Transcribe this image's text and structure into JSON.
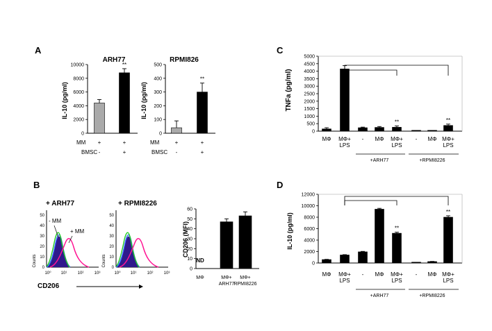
{
  "panels": {
    "A": "A",
    "B": "B",
    "C": "C",
    "D": "D"
  },
  "colors": {
    "black_bar": "#000000",
    "gray_bar": "#aaaaaa",
    "axis": "#000000",
    "histo_purple": "#2e1a8c",
    "histo_blue": "#3366ff",
    "histo_green": "#22cc22",
    "histo_magenta": "#ff1493",
    "label_green": "#006400"
  },
  "panel_a": {
    "ylabel": "IL-10 (pg/ml)",
    "row_labels": [
      "MM",
      "BMSC"
    ],
    "row_values": [
      [
        "+",
        "+"
      ],
      [
        "-",
        "+"
      ]
    ],
    "sig": "**"
  },
  "panel_b": {
    "titles": [
      "+ ARH77",
      "+ RPMI8226"
    ],
    "counts_label": "Counts",
    "annot_minus_mm": "- MM",
    "annot_plus_mm": "+ MM",
    "xlabel": "CD206",
    "decades": [
      "10⁰",
      "10¹",
      "10²",
      "10³"
    ],
    "nd": "ND",
    "bar_categories": [
      "MΦ",
      "MΦ+\nARH77",
      "MΦ+\nRPMI8226"
    ]
  },
  "panel_c": {
    "row1": [
      "MΦ",
      "MΦ+\nLPS",
      "-",
      "MΦ",
      "MΦ+\nLPS",
      "-",
      "MΦ",
      "MΦ+\nLPS"
    ],
    "groups": [
      "+ARH77",
      "+RPMI8226"
    ]
  },
  "panel_d": {
    "row1": [
      "MΦ",
      "MΦ+\nLPS",
      "-",
      "MΦ",
      "MΦ+\nLPS",
      "-",
      "MΦ",
      "MΦ+\nLPS"
    ],
    "groups": [
      "+ARH77",
      "+RPMI8226"
    ]
  },
  "chart_data": [
    {
      "id": "a1",
      "type": "bar",
      "title": "ARH77",
      "categories": [
        "MM+ BMSC-",
        "MM+ BMSC+"
      ],
      "values": [
        4400,
        8800
      ],
      "errors": [
        500,
        600
      ],
      "colors": [
        "gray",
        "black"
      ],
      "sig": [
        "",
        "**"
      ],
      "ylabel": "IL-10 (pg/ml)",
      "ylim": [
        0,
        10000
      ],
      "yticks": [
        0,
        2000,
        4000,
        6000,
        8000,
        10000
      ]
    },
    {
      "id": "a2",
      "type": "bar",
      "title": "RPMI826",
      "categories": [
        "MM+ BMSC-",
        "MM+ BMSC+"
      ],
      "values": [
        40,
        300
      ],
      "errors": [
        50,
        65
      ],
      "colors": [
        "gray",
        "black"
      ],
      "sig": [
        "",
        "**"
      ],
      "ylabel": "IL-10 (pg/ml)",
      "ylim": [
        0,
        500
      ],
      "yticks": [
        0,
        100,
        200,
        300,
        400,
        500
      ]
    },
    {
      "id": "b",
      "type": "bar",
      "title": "",
      "categories": [
        "MΦ",
        "MΦ+ ARH77",
        "MΦ+ RPMI8226"
      ],
      "values": [
        null,
        47,
        53
      ],
      "errors": [
        0,
        3,
        4
      ],
      "colors": [
        "black",
        "black",
        "black"
      ],
      "sig": [
        "",
        "",
        ""
      ],
      "ylabel": "CD206 (MFI)",
      "ylim": [
        0,
        60
      ],
      "yticks": [
        0,
        10,
        20,
        30,
        40,
        50,
        60
      ]
    },
    {
      "id": "c",
      "type": "bar",
      "title": "",
      "categories": [
        "MΦ",
        "MΦ+LPS",
        "ARH77 -",
        "ARH77 MΦ",
        "ARH77 MΦ+LPS",
        "RPMI8226 -",
        "RPMI8226 MΦ",
        "RPMI8226 MΦ+LPS"
      ],
      "values": [
        150,
        4150,
        230,
        250,
        260,
        10,
        30,
        380
      ],
      "errors": [
        80,
        220,
        40,
        60,
        90,
        0,
        10,
        90
      ],
      "colors": [
        "black",
        "black",
        "black",
        "black",
        "black",
        "black",
        "black",
        "black"
      ],
      "sig": [
        "",
        "",
        "",
        "",
        "**",
        "",
        "",
        "**"
      ],
      "ylabel": "TNFa (pg/ml)",
      "ylim": [
        0,
        5000
      ],
      "yticks": [
        0,
        500,
        1000,
        1500,
        2000,
        2500,
        3000,
        3500,
        4000,
        4500,
        5000
      ]
    },
    {
      "id": "d",
      "type": "bar",
      "title": "",
      "categories": [
        "MΦ",
        "MΦ+LPS",
        "ARH77 -",
        "ARH77 MΦ",
        "ARH77 MΦ+LPS",
        "RPMI8226 -",
        "RPMI8226 MΦ",
        "RPMI8226 MΦ+LPS"
      ],
      "values": [
        600,
        1400,
        1950,
        9400,
        5200,
        50,
        250,
        8000
      ],
      "errors": [
        40,
        60,
        80,
        150,
        180,
        0,
        30,
        250
      ],
      "colors": [
        "black",
        "black",
        "black",
        "black",
        "black",
        "black",
        "black",
        "black"
      ],
      "sig": [
        "",
        "",
        "",
        "",
        "**",
        "",
        "",
        "**"
      ],
      "ylabel": "IL-10 (pg/ml)",
      "ylim": [
        0,
        12000
      ],
      "yticks": [
        0,
        2000,
        4000,
        6000,
        8000,
        10000,
        12000
      ]
    }
  ]
}
